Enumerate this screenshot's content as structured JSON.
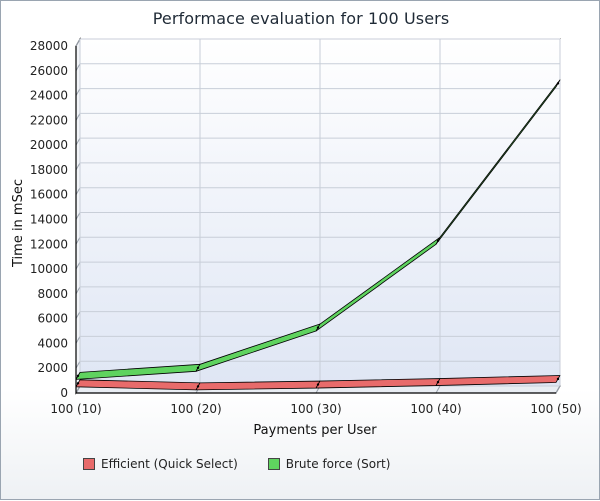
{
  "chart_data": {
    "type": "line",
    "title": "Performace evaluation for 100 Users",
    "xlabel": "Payments per User",
    "ylabel": "Time in mSec",
    "categories": [
      "100 (10)",
      "100 (20)",
      "100 (30)",
      "100 (40)",
      "100 (50)"
    ],
    "ylim": [
      0,
      28000
    ],
    "yticks": [
      0,
      2000,
      4000,
      6000,
      8000,
      10000,
      12000,
      14000,
      16000,
      18000,
      20000,
      22000,
      24000,
      26000,
      28000
    ],
    "grid": true,
    "legend_position": "bottom",
    "series": [
      {
        "name": "Efficient (Quick Select)",
        "values": [
          500,
          250,
          400,
          600,
          850
        ],
        "color": "#e86b6b"
      },
      {
        "name": "Brute force (Sort)",
        "values": [
          1100,
          1750,
          5000,
          12000,
          24700
        ],
        "color": "#5fd35f"
      }
    ]
  }
}
